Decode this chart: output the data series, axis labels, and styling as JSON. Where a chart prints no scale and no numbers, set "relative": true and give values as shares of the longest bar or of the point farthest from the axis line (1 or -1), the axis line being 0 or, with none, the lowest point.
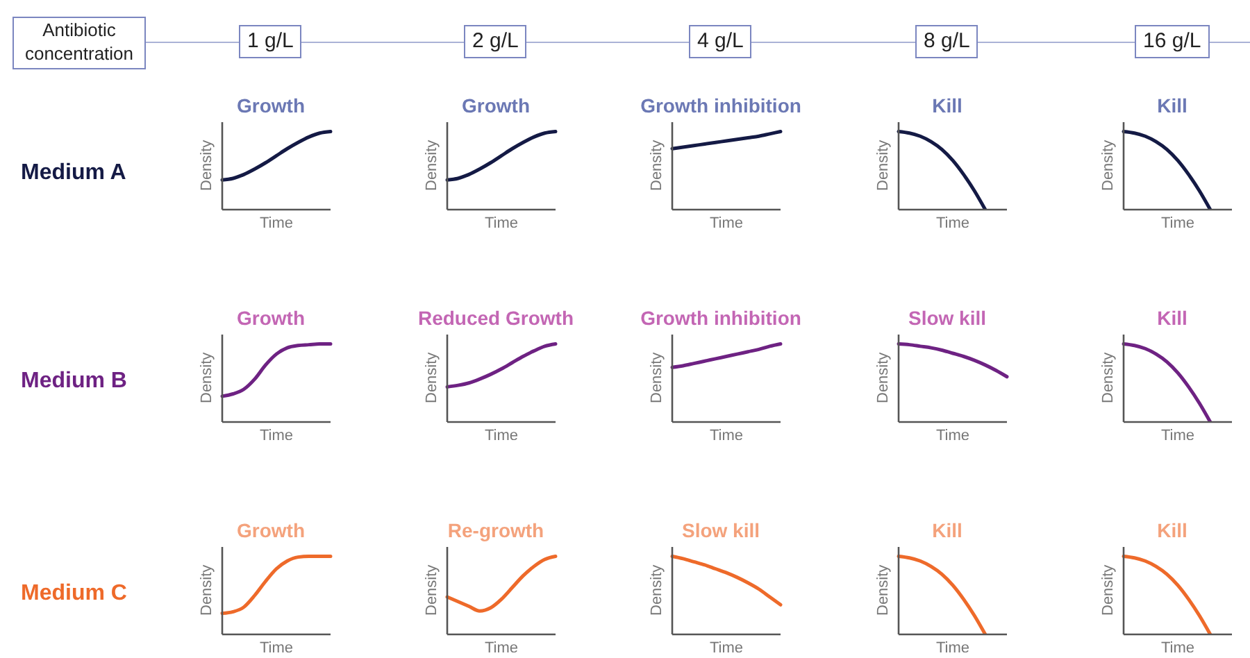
{
  "chart_data": [
    {
      "type": "other",
      "title": "Antibiotic concentration",
      "annotations": [
        "1 g/L",
        "2 g/L",
        "4 g/L",
        "8 g/L",
        "16 g/L",
        "Medium A",
        "Medium B",
        "Medium C"
      ]
    },
    {
      "type": "line",
      "title": "Growth",
      "xlabel": "Time",
      "ylabel": "Density",
      "relative": true,
      "categories": [
        null,
        null,
        null,
        null,
        null,
        null,
        null,
        null,
        null,
        null,
        null
      ],
      "series": [
        {
          "color": "#141a45",
          "values": [
            0.38,
            0.4,
            0.45,
            0.52,
            0.6,
            0.69,
            0.78,
            0.86,
            0.93,
            0.98,
            1
          ]
        }
      ]
    },
    {
      "type": "line",
      "title": "Growth",
      "xlabel": "Time",
      "ylabel": "Density",
      "relative": true,
      "categories": [
        null,
        null,
        null,
        null,
        null,
        null,
        null,
        null,
        null,
        null,
        null
      ],
      "series": [
        {
          "color": "#141a45",
          "values": [
            0.38,
            0.4,
            0.45,
            0.52,
            0.6,
            0.69,
            0.78,
            0.86,
            0.93,
            0.98,
            1
          ]
        }
      ]
    },
    {
      "type": "line",
      "title": "Growth inhibition",
      "xlabel": "Time",
      "ylabel": "Density",
      "relative": true,
      "categories": [
        null,
        null,
        null,
        null,
        null,
        null,
        null,
        null,
        null,
        null,
        null
      ],
      "series": [
        {
          "color": "#141a45",
          "values": [
            0.78,
            0.8,
            0.82,
            0.84,
            0.86,
            0.88,
            0.9,
            0.92,
            0.94,
            0.97,
            1
          ]
        }
      ]
    },
    {
      "type": "line",
      "title": "Kill",
      "xlabel": "Time",
      "ylabel": "Density",
      "relative": true,
      "categories": [
        null,
        null,
        null,
        null,
        null,
        null,
        null,
        null,
        null,
        null,
        null
      ],
      "series": [
        {
          "color": "#141a45",
          "values": [
            1,
            0.98,
            0.94,
            0.87,
            0.77,
            0.63,
            0.45,
            0.24,
            0,
            null,
            null
          ]
        }
      ]
    },
    {
      "type": "line",
      "title": "Kill",
      "xlabel": "Time",
      "ylabel": "Density",
      "relative": true,
      "categories": [
        null,
        null,
        null,
        null,
        null,
        null,
        null,
        null,
        null,
        null,
        null
      ],
      "series": [
        {
          "color": "#141a45",
          "values": [
            1,
            0.98,
            0.94,
            0.87,
            0.77,
            0.63,
            0.45,
            0.24,
            0,
            null,
            null
          ]
        }
      ]
    },
    {
      "type": "line",
      "title": "Growth",
      "xlabel": "Time",
      "ylabel": "Density",
      "relative": true,
      "categories": [
        null,
        null,
        null,
        null,
        null,
        null,
        null,
        null,
        null,
        null,
        null
      ],
      "series": [
        {
          "color": "#6e2283",
          "values": [
            0.33,
            0.36,
            0.42,
            0.55,
            0.73,
            0.87,
            0.95,
            0.98,
            0.99,
            1,
            1
          ]
        }
      ]
    },
    {
      "type": "line",
      "title": "Reduced Growth",
      "xlabel": "Time",
      "ylabel": "Density",
      "relative": true,
      "categories": [
        null,
        null,
        null,
        null,
        null,
        null,
        null,
        null,
        null,
        null,
        null
      ],
      "series": [
        {
          "color": "#6e2283",
          "values": [
            0.45,
            0.47,
            0.5,
            0.55,
            0.61,
            0.68,
            0.76,
            0.84,
            0.91,
            0.97,
            1
          ]
        }
      ]
    },
    {
      "type": "line",
      "title": "Growth inhibition",
      "xlabel": "Time",
      "ylabel": "Density",
      "relative": true,
      "categories": [
        null,
        null,
        null,
        null,
        null,
        null,
        null,
        null,
        null,
        null,
        null
      ],
      "series": [
        {
          "color": "#6e2283",
          "values": [
            0.7,
            0.72,
            0.75,
            0.78,
            0.81,
            0.84,
            0.87,
            0.9,
            0.93,
            0.97,
            1
          ]
        }
      ]
    },
    {
      "type": "line",
      "title": "Slow kill",
      "xlabel": "Time",
      "ylabel": "Density",
      "relative": true,
      "categories": [
        null,
        null,
        null,
        null,
        null,
        null,
        null,
        null,
        null,
        null,
        null
      ],
      "series": [
        {
          "color": "#6e2283",
          "values": [
            1,
            0.99,
            0.97,
            0.95,
            0.92,
            0.88,
            0.84,
            0.79,
            0.73,
            0.66,
            0.58
          ]
        }
      ]
    },
    {
      "type": "line",
      "title": "Kill",
      "xlabel": "Time",
      "ylabel": "Density",
      "relative": true,
      "categories": [
        null,
        null,
        null,
        null,
        null,
        null,
        null,
        null,
        null,
        null,
        null
      ],
      "series": [
        {
          "color": "#6e2283",
          "values": [
            1,
            0.98,
            0.94,
            0.87,
            0.77,
            0.63,
            0.45,
            0.24,
            0,
            null,
            null
          ]
        }
      ]
    },
    {
      "type": "line",
      "title": "Growth",
      "xlabel": "Time",
      "ylabel": "Density",
      "relative": true,
      "categories": [
        null,
        null,
        null,
        null,
        null,
        null,
        null,
        null,
        null,
        null,
        null
      ],
      "series": [
        {
          "color": "#ee6a2a",
          "values": [
            0.27,
            0.29,
            0.35,
            0.5,
            0.68,
            0.84,
            0.94,
            0.99,
            1,
            1,
            1
          ]
        }
      ]
    },
    {
      "type": "line",
      "title": "Re-growth",
      "xlabel": "Time",
      "ylabel": "Density",
      "relative": true,
      "categories": [
        null,
        null,
        null,
        null,
        null,
        null,
        null,
        null,
        null,
        null,
        null
      ],
      "series": [
        {
          "color": "#ee6a2a",
          "values": [
            0.48,
            0.42,
            0.36,
            0.3,
            0.34,
            0.45,
            0.6,
            0.75,
            0.87,
            0.96,
            1
          ]
        }
      ]
    },
    {
      "type": "line",
      "title": "Slow kill",
      "xlabel": "Time",
      "ylabel": "Density",
      "relative": true,
      "categories": [
        null,
        null,
        null,
        null,
        null,
        null,
        null,
        null,
        null,
        null,
        null
      ],
      "series": [
        {
          "color": "#ee6a2a",
          "values": [
            1,
            0.97,
            0.93,
            0.89,
            0.84,
            0.79,
            0.73,
            0.66,
            0.58,
            0.48,
            0.38
          ]
        }
      ]
    },
    {
      "type": "line",
      "title": "Kill",
      "xlabel": "Time",
      "ylabel": "Density",
      "relative": true,
      "categories": [
        null,
        null,
        null,
        null,
        null,
        null,
        null,
        null,
        null,
        null,
        null
      ],
      "series": [
        {
          "color": "#ee6a2a",
          "values": [
            1,
            0.98,
            0.94,
            0.87,
            0.77,
            0.63,
            0.45,
            0.24,
            0,
            null,
            null
          ]
        }
      ]
    },
    {
      "type": "line",
      "title": "Kill",
      "xlabel": "Time",
      "ylabel": "Density",
      "relative": true,
      "categories": [
        null,
        null,
        null,
        null,
        null,
        null,
        null,
        null,
        null,
        null,
        null
      ],
      "series": [
        {
          "color": "#ee6a2a",
          "values": [
            1,
            0.98,
            0.94,
            0.87,
            0.77,
            0.63,
            0.45,
            0.24,
            0,
            null,
            null
          ]
        }
      ]
    }
  ]
}
